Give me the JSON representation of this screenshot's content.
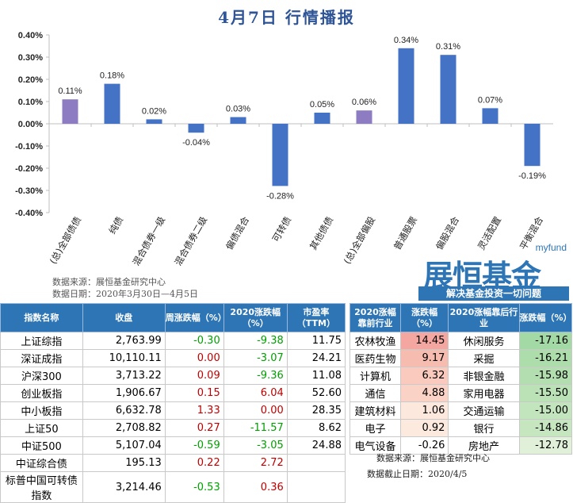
{
  "title": "4月7日  行情播报",
  "chart_data": {
    "type": "bar",
    "categories": [
      "(总)全部债债",
      "纯债",
      "混合债券一级",
      "混合债券二级",
      "偏债混合",
      "可转债",
      "其他债债",
      "(总)全部偏股",
      "普通股票",
      "偏股混合",
      "灵活配置",
      "平衡混合"
    ],
    "values": [
      0.11,
      0.18,
      0.02,
      -0.04,
      0.03,
      -0.28,
      0.05,
      0.06,
      0.34,
      0.31,
      0.07,
      -0.19
    ],
    "value_labels": [
      "0.11%",
      "0.18%",
      "0.02%",
      "-0.04%",
      "0.03%",
      "-0.28%",
      "0.05%",
      "0.06%",
      "0.34%",
      "0.31%",
      "0.07%",
      "-0.19%"
    ],
    "highlight": [
      true,
      false,
      false,
      false,
      false,
      false,
      false,
      true,
      false,
      false,
      false,
      false
    ],
    "colors": {
      "normal": "#4472C4",
      "highlight": "#8E7CC3"
    },
    "ylim": [
      -0.4,
      0.4
    ],
    "yticks": [
      0.4,
      0.3,
      0.2,
      0.1,
      0.0,
      -0.1,
      -0.2,
      -0.3,
      -0.4
    ],
    "ytick_labels": [
      "0.40%",
      "0.30%",
      "0.20%",
      "0.10%",
      "0.00%",
      "-0.10%",
      "-0.20%",
      "-0.30%",
      "-0.40%"
    ],
    "grid": false
  },
  "chart_notes": {
    "source": "数据来源：展恒基金研究中心",
    "date": "数据日期：2020年3月30日—4月5日"
  },
  "logo": {
    "en": "myfund",
    "cn": "展恒基金",
    "slogan": "解决基金投资一切问题"
  },
  "left_table": {
    "headers": [
      "指数名称",
      "收盘",
      "周涨跌幅（%）",
      "2020涨跌幅（%）",
      "市盈率（TTM）"
    ],
    "rows": [
      {
        "name": "上证综指",
        "close": "2,763.99",
        "week": "-0.30",
        "week_dir": "grn",
        "ytd": "-9.38",
        "ytd_dir": "grn",
        "pe": "11.75"
      },
      {
        "name": "深证成指",
        "close": "10,110.11",
        "week": "0.00",
        "week_dir": "red",
        "ytd": "-3.07",
        "ytd_dir": "grn",
        "pe": "24.21"
      },
      {
        "name": "沪深300",
        "close": "3,713.22",
        "week": "0.09",
        "week_dir": "red",
        "ytd": "-9.36",
        "ytd_dir": "grn",
        "pe": "11.08"
      },
      {
        "name": "创业板指",
        "close": "1,906.67",
        "week": "0.15",
        "week_dir": "red",
        "ytd": "6.04",
        "ytd_dir": "red",
        "pe": "52.60"
      },
      {
        "name": "中小板指",
        "close": "6,632.78",
        "week": "1.33",
        "week_dir": "red",
        "ytd": "0.00",
        "ytd_dir": "red",
        "pe": "28.35"
      },
      {
        "name": "上证50",
        "close": "2,708.82",
        "week": "0.27",
        "week_dir": "red",
        "ytd": "-11.57",
        "ytd_dir": "grn",
        "pe": "8.62"
      },
      {
        "name": "中证500",
        "close": "5,107.04",
        "week": "-0.59",
        "week_dir": "grn",
        "ytd": "-3.05",
        "ytd_dir": "grn",
        "pe": "24.88"
      },
      {
        "name": "中证综合债",
        "close": "195.13",
        "week": "0.22",
        "week_dir": "red",
        "ytd": "2.72",
        "ytd_dir": "red",
        "pe": ""
      },
      {
        "name": "标普中国可转债指数",
        "close": "3,214.46",
        "week": "-0.53",
        "week_dir": "grn",
        "ytd": "0.36",
        "ytd_dir": "red",
        "pe": ""
      }
    ]
  },
  "right_table": {
    "headers": [
      "2020涨幅靠前行业",
      "涨跌幅（%）",
      "2020涨幅靠后行业",
      "涨跌幅（%）"
    ],
    "rows": [
      {
        "top": "农林牧渔",
        "top_val": "14.45",
        "top_bg": "#F4A6A0",
        "bot": "休闲服务",
        "bot_val": "-17.16",
        "bot_bg": "#A3D9A5"
      },
      {
        "top": "医药生物",
        "top_val": "9.17",
        "top_bg": "#F7BCB0",
        "bot": "采掘",
        "bot_val": "-16.21",
        "bot_bg": "#AEDDAC"
      },
      {
        "top": "计算机",
        "top_val": "6.32",
        "top_bg": "#F9CABD",
        "bot": "非银金融",
        "bot_val": "-15.98",
        "bot_bg": "#B3DFB0"
      },
      {
        "top": "通信",
        "top_val": "4.88",
        "top_bg": "#FAD3C6",
        "bot": "家用电器",
        "bot_val": "-15.50",
        "bot_bg": "#BBE2B6"
      },
      {
        "top": "建筑材料",
        "top_val": "1.06",
        "top_bg": "#FCE8DC",
        "bot": "交通运输",
        "bot_val": "-15.00",
        "bot_bg": "#C3E5BD"
      },
      {
        "top": "电子",
        "top_val": "0.92",
        "top_bg": "#FCEADF",
        "bot": "银行",
        "bot_val": "-14.86",
        "bot_bg": "#C6E6BF"
      },
      {
        "top": "电气设备",
        "top_val": "-0.26",
        "top_bg": "#FFFFFF",
        "bot": "房地产",
        "bot_val": "-12.78",
        "bot_bg": "#E1F0D9"
      }
    ],
    "footer_source": "数据来源：展恒基金研究中心",
    "footer_date": "数据截止日期：2020/4/5"
  }
}
